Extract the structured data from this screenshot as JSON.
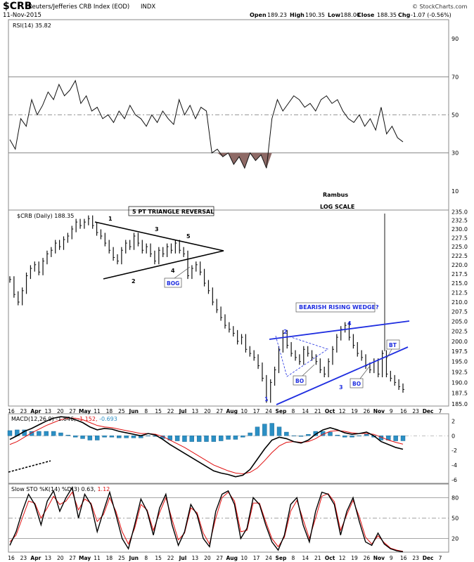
{
  "header": {
    "symbol": "$CRB",
    "name": "Reuters/Jefferies CRB Index (EOD)",
    "exchange": "INDX",
    "date": "11-Nov-2015",
    "open_label": "Open",
    "open": "189.23",
    "high_label": "High",
    "high": "190.35",
    "low_label": "Low",
    "low": "188.00",
    "close_label": "Close",
    "close": "188.35",
    "chg_label": "Chg",
    "chg": "-1.07 (-0.56%)",
    "watermark": "© StockCharts.com"
  },
  "colors": {
    "price": "#111111",
    "annotation_blue": "#1f2ee0",
    "macd_hist": "#2b8fc4",
    "signal_red": "#e01010",
    "rsi_fill": "#8e6a66",
    "grid": "#777777",
    "panel_border": "#888888"
  },
  "x_axis": {
    "labels": [
      "16",
      "23",
      "Apr",
      "13",
      "20",
      "27",
      "May",
      "11",
      "18",
      "25",
      "Jun",
      "8",
      "15",
      "22",
      "Jul",
      "13",
      "20",
      "27",
      "Aug",
      "10",
      "17",
      "24",
      "Sep",
      "8",
      "14",
      "21",
      "Oct",
      "12",
      "19",
      "26",
      "Nov",
      "9",
      "16",
      "23",
      "Dec",
      "7"
    ],
    "month_labels": [
      "Apr",
      "May",
      "Jun",
      "Jul",
      "Aug",
      "Sep",
      "Oct",
      "Nov",
      "Dec"
    ]
  },
  "annotations": {
    "triangle_title": "5 PT TRIANGLE REVERSAL",
    "bog": "BOG",
    "wedge_title": "BEARISH RISING WEDGE?",
    "bo1": "BO",
    "bo2": "BO",
    "bt": "BT",
    "rambus": "Rambus",
    "log_scale": "LOG SCALE",
    "tri_points": [
      "1",
      "2",
      "3",
      "4",
      "5"
    ],
    "wedge_points": [
      "1",
      "2",
      "3",
      "4"
    ]
  },
  "chart_data": [
    {
      "type": "line",
      "panel": "RSI",
      "title": "RSI(14) 35.82",
      "yticks": [
        10,
        30,
        50,
        70,
        90
      ],
      "ylim": [
        0,
        100
      ],
      "reference_lines": [
        30,
        50,
        70
      ],
      "series": [
        {
          "name": "RSI(14)",
          "values": [
            37,
            32,
            48,
            44,
            58,
            50,
            55,
            62,
            58,
            66,
            60,
            63,
            68,
            56,
            60,
            52,
            54,
            48,
            50,
            46,
            52,
            48,
            55,
            50,
            48,
            44,
            50,
            46,
            52,
            48,
            45,
            58,
            50,
            55,
            48,
            54,
            52,
            30,
            32,
            28,
            30,
            24,
            28,
            22,
            30,
            26,
            29,
            22,
            48,
            58,
            52,
            56,
            60,
            58,
            54,
            56,
            52,
            58,
            60,
            56,
            58,
            52,
            48,
            46,
            50,
            44,
            48,
            42,
            54,
            40,
            44,
            38,
            35.82
          ]
        }
      ]
    },
    {
      "type": "line",
      "panel": "Price",
      "title": "$CRB (Daily) 188.35",
      "scale": "log",
      "yticks": [
        185.0,
        187.5,
        190.0,
        192.5,
        195.0,
        197.5,
        200.0,
        202.5,
        205.0,
        207.5,
        210.0,
        212.5,
        215.0,
        217.5,
        220.0,
        222.5,
        225.0,
        227.5,
        230.0,
        232.5,
        235.0
      ],
      "ylim": [
        184.5,
        235.5
      ],
      "series": [
        {
          "name": "$CRB",
          "values": [
            216,
            212,
            210,
            213,
            217,
            219,
            220,
            218,
            221,
            223,
            224,
            226,
            225,
            227,
            228,
            230,
            232,
            231,
            232,
            233,
            231,
            229,
            228,
            226,
            224,
            222,
            221,
            224,
            226,
            225,
            228,
            226,
            224,
            225,
            223,
            221,
            224,
            223,
            225,
            224,
            226,
            224,
            223,
            217,
            219,
            220,
            218,
            215,
            213,
            210,
            208,
            206,
            204,
            203,
            202,
            200,
            201,
            198,
            197,
            196,
            194,
            191,
            186,
            190,
            193,
            198,
            202,
            199,
            197,
            196,
            195,
            198,
            197,
            196,
            195,
            193,
            192,
            195,
            198,
            201,
            203,
            204,
            201,
            199,
            197,
            196,
            194,
            193,
            195,
            192,
            197,
            192,
            191,
            190,
            189,
            188.35
          ]
        }
      ]
    },
    {
      "type": "line",
      "panel": "MACD",
      "title": "MACD(12,26,9) -1.846, -1.152, -0.693",
      "yticks": [
        2,
        0,
        -2,
        -4,
        -6
      ],
      "ylim": [
        -6.5,
        3
      ],
      "series": [
        {
          "name": "MACD",
          "values": [
            -0.5,
            0,
            0.6,
            1,
            1.5,
            2,
            2.4,
            2.6,
            2.5,
            2.2,
            1.8,
            1.2,
            0.8,
            1,
            0.9,
            0.6,
            0.4,
            0.2,
            0,
            0.3,
            0.1,
            -0.5,
            -1.2,
            -1.8,
            -2.4,
            -3,
            -3.6,
            -4.2,
            -4.8,
            -5.1,
            -5.3,
            -5.6,
            -5.4,
            -4.6,
            -3.2,
            -1.8,
            -0.6,
            -0.2,
            -0.4,
            -0.8,
            -1,
            -0.6,
            0.2,
            0.8,
            1.1,
            0.8,
            0.4,
            0.2,
            0.3,
            0.5,
            0,
            -0.8,
            -1.2,
            -1.6,
            -1.846
          ]
        },
        {
          "name": "Signal",
          "values": [
            -1.2,
            -0.8,
            -0.2,
            0.4,
            0.9,
            1.4,
            1.8,
            2.2,
            2.4,
            2.4,
            2.2,
            1.8,
            1.4,
            1.2,
            1.1,
            0.9,
            0.7,
            0.5,
            0.3,
            0.3,
            0.2,
            -0.1,
            -0.6,
            -1.1,
            -1.6,
            -2.2,
            -2.8,
            -3.4,
            -4,
            -4.4,
            -4.8,
            -5.1,
            -5.2,
            -5,
            -4.4,
            -3.4,
            -2.3,
            -1.4,
            -0.9,
            -0.8,
            -0.9,
            -0.8,
            -0.4,
            0.2,
            0.6,
            0.7,
            0.6,
            0.4,
            0.3,
            0.3,
            0.2,
            -0.2,
            -0.6,
            -0.9,
            -1.152
          ]
        },
        {
          "name": "Histogram",
          "values": [
            0.7,
            0.8,
            0.8,
            0.6,
            0.6,
            0.6,
            0.6,
            0.4,
            0.1,
            -0.2,
            -0.4,
            -0.6,
            -0.6,
            -0.2,
            -0.2,
            -0.3,
            -0.3,
            -0.3,
            -0.3,
            0,
            -0.1,
            -0.4,
            -0.6,
            -0.7,
            -0.8,
            -0.8,
            -0.8,
            -0.8,
            -0.8,
            -0.7,
            -0.5,
            -0.5,
            -0.2,
            0.4,
            1.2,
            1.6,
            1.7,
            1.2,
            0.5,
            0,
            -0.1,
            0.2,
            0.6,
            0.6,
            0.5,
            0.1,
            -0.2,
            -0.2,
            0,
            0.2,
            -0.2,
            -0.6,
            -0.6,
            -0.7,
            -0.693
          ]
        }
      ]
    },
    {
      "type": "line",
      "panel": "SlowSTO",
      "title": "Slow STO %K(14) %D(3) 0.63, 1.12",
      "yticks": [
        80,
        50,
        20
      ],
      "ylim": [
        0,
        100
      ],
      "reference_lines": [
        20,
        50,
        80
      ],
      "series": [
        {
          "name": "%K",
          "values": [
            10,
            30,
            60,
            85,
            70,
            40,
            75,
            90,
            60,
            80,
            95,
            50,
            85,
            70,
            30,
            60,
            88,
            55,
            20,
            5,
            40,
            78,
            60,
            25,
            65,
            85,
            40,
            10,
            30,
            70,
            55,
            20,
            8,
            60,
            85,
            90,
            70,
            20,
            35,
            80,
            70,
            40,
            15,
            3,
            25,
            70,
            80,
            40,
            15,
            60,
            88,
            85,
            70,
            25,
            60,
            80,
            45,
            15,
            10,
            28,
            12,
            5,
            2,
            0.63
          ]
        },
        {
          "name": "%D",
          "values": [
            15,
            25,
            50,
            75,
            72,
            50,
            65,
            82,
            70,
            75,
            88,
            62,
            78,
            72,
            45,
            55,
            80,
            60,
            30,
            12,
            35,
            70,
            62,
            32,
            58,
            80,
            48,
            18,
            28,
            65,
            58,
            28,
            12,
            50,
            80,
            88,
            75,
            30,
            32,
            72,
            72,
            45,
            20,
            8,
            22,
            60,
            76,
            48,
            20,
            50,
            82,
            86,
            74,
            32,
            55,
            76,
            52,
            22,
            12,
            24,
            14,
            6,
            3,
            1.12
          ]
        }
      ]
    }
  ]
}
